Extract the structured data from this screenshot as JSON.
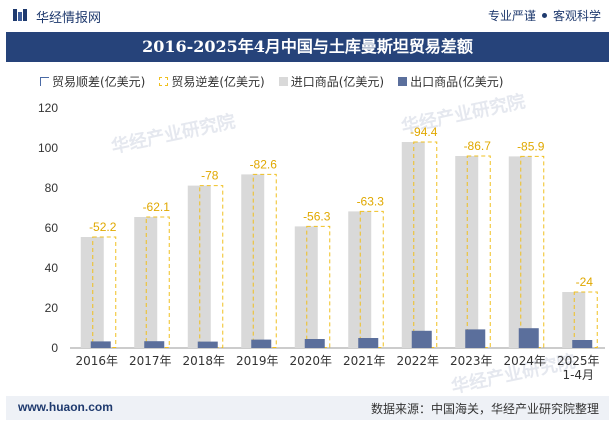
{
  "header": {
    "brand": "华经情报网",
    "slogan_left": "专业严谨",
    "slogan_right": "客观科学"
  },
  "title": "2016-2025年4月中国与土库曼斯坦贸易差额",
  "legend": [
    {
      "label": "贸易顺差(亿美元)",
      "color": "#4a6aa5",
      "style": "outline"
    },
    {
      "label": "贸易逆差(亿美元)",
      "color": "#f0c020",
      "style": "dashed"
    },
    {
      "label": "进口商品(亿美元)",
      "color": "#d9d9d9",
      "style": "solid"
    },
    {
      "label": "出口商品(亿美元)",
      "color": "#5b6f9c",
      "style": "solid"
    }
  ],
  "watermark": "华经产业研究院",
  "footer": {
    "website": "www.huaon.com",
    "source": "数据来源：中国海关，华经产业研究院整理"
  },
  "chart_data": {
    "type": "bar",
    "categories": [
      "2016年",
      "2017年",
      "2018年",
      "2019年",
      "2020年",
      "2021年",
      "2022年",
      "2023年",
      "2024年",
      "2025年 1-4月"
    ],
    "series": [
      {
        "name": "进口商品(亿美元)",
        "color": "#d9d9d9",
        "values": [
          55.5,
          65.5,
          81.2,
          86.8,
          60.8,
          68.3,
          103.0,
          96.0,
          95.8,
          28.0
        ]
      },
      {
        "name": "出口商品(亿美元)",
        "color": "#5b6f9c",
        "values": [
          3.3,
          3.4,
          3.2,
          4.2,
          4.5,
          5.0,
          8.6,
          9.3,
          9.9,
          4.0
        ]
      },
      {
        "name": "贸易逆差(亿美元)",
        "color": "#f0c020",
        "values": [
          -52.2,
          -62.1,
          -78,
          -82.6,
          -56.3,
          -63.3,
          -94.4,
          -86.7,
          -85.9,
          -24
        ]
      }
    ],
    "deficit_labels": [
      "-52.2",
      "-62.1",
      "-78",
      "-82.6",
      "-56.3",
      "-63.3",
      "-94.4",
      "-86.7",
      "-85.9",
      "-24"
    ],
    "y_ticks": [
      0,
      20,
      40,
      60,
      80,
      100,
      120
    ],
    "ylim": [
      0,
      120
    ],
    "grid": false,
    "legend_position": "top-left"
  }
}
